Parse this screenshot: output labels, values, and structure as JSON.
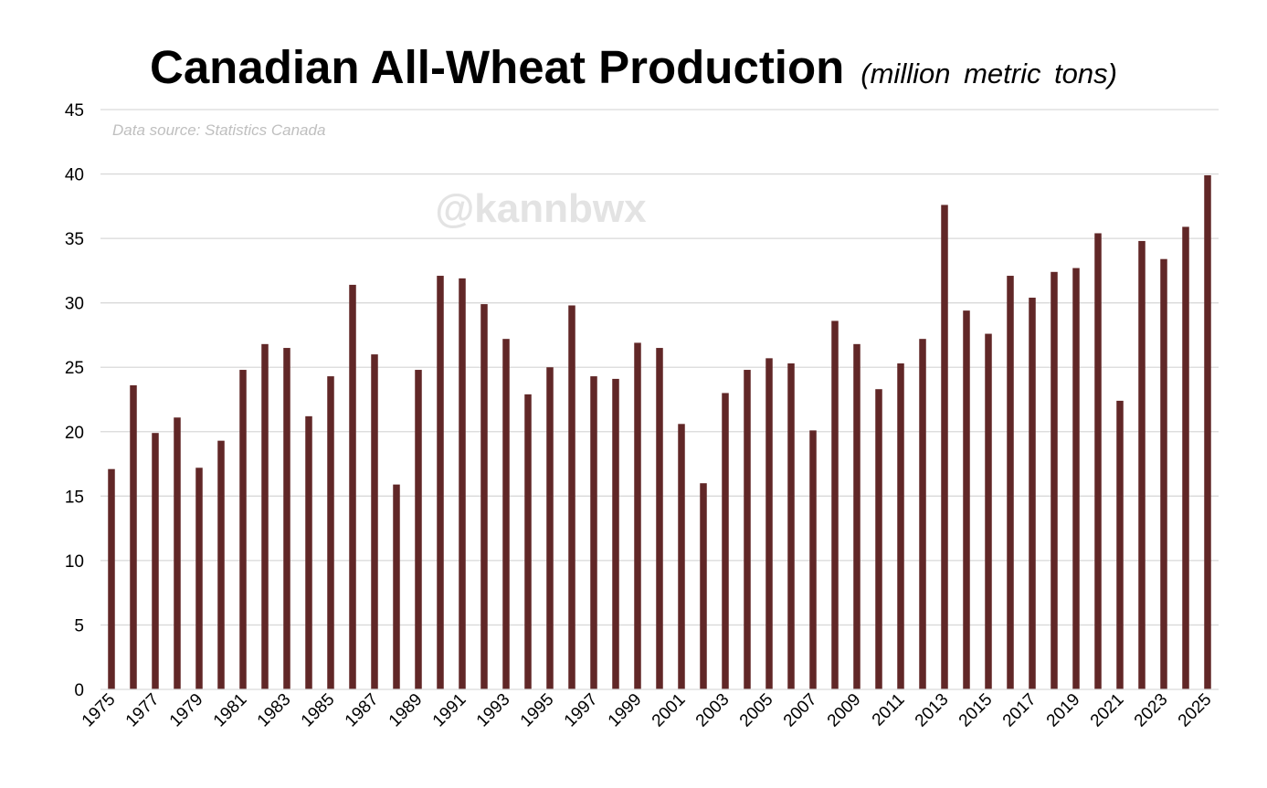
{
  "chart_data": {
    "type": "bar",
    "title": "Canadian All-Wheat Production",
    "units_label": "(million metric tons)",
    "source_note": "Data source: Statistics Canada",
    "watermark": "@kannbwx",
    "xlabel": "",
    "ylabel": "",
    "ylim": [
      0,
      45
    ],
    "y_ticks": [
      0,
      5,
      10,
      15,
      20,
      25,
      30,
      35,
      40,
      45
    ],
    "grid": true,
    "bar_color": "#612727",
    "grid_color": "#d9d9d9",
    "categories": [
      "1975",
      "1976",
      "1977",
      "1978",
      "1979",
      "1980",
      "1981",
      "1982",
      "1983",
      "1984",
      "1985",
      "1986",
      "1987",
      "1988",
      "1989",
      "1990",
      "1991",
      "1992",
      "1993",
      "1994",
      "1995",
      "1996",
      "1997",
      "1998",
      "1999",
      "2000",
      "2001",
      "2002",
      "2003",
      "2004",
      "2005",
      "2006",
      "2007",
      "2008",
      "2009",
      "2010",
      "2011",
      "2012",
      "2013",
      "2014",
      "2015",
      "2016",
      "2017",
      "2018",
      "2019",
      "2020",
      "2021",
      "2022",
      "2023",
      "2024",
      "2025"
    ],
    "x_tick_labels": [
      "1975",
      "1977",
      "1979",
      "1981",
      "1983",
      "1985",
      "1987",
      "1989",
      "1991",
      "1993",
      "1995",
      "1997",
      "1999",
      "2001",
      "2003",
      "2005",
      "2007",
      "2009",
      "2011",
      "2013",
      "2015",
      "2017",
      "2019",
      "2021",
      "2023",
      "2025"
    ],
    "values": [
      17.1,
      23.6,
      19.9,
      21.1,
      17.2,
      19.3,
      24.8,
      26.8,
      26.5,
      21.2,
      24.3,
      31.4,
      26.0,
      15.9,
      24.8,
      32.1,
      31.9,
      29.9,
      27.2,
      22.9,
      25.0,
      29.8,
      24.3,
      24.1,
      26.9,
      26.5,
      20.6,
      16.0,
      23.0,
      24.8,
      25.7,
      25.3,
      20.1,
      28.6,
      26.8,
      23.3,
      25.3,
      27.2,
      37.6,
      29.4,
      27.6,
      32.1,
      30.4,
      32.4,
      32.7,
      35.4,
      22.4,
      34.8,
      33.4,
      35.9,
      39.9
    ]
  }
}
